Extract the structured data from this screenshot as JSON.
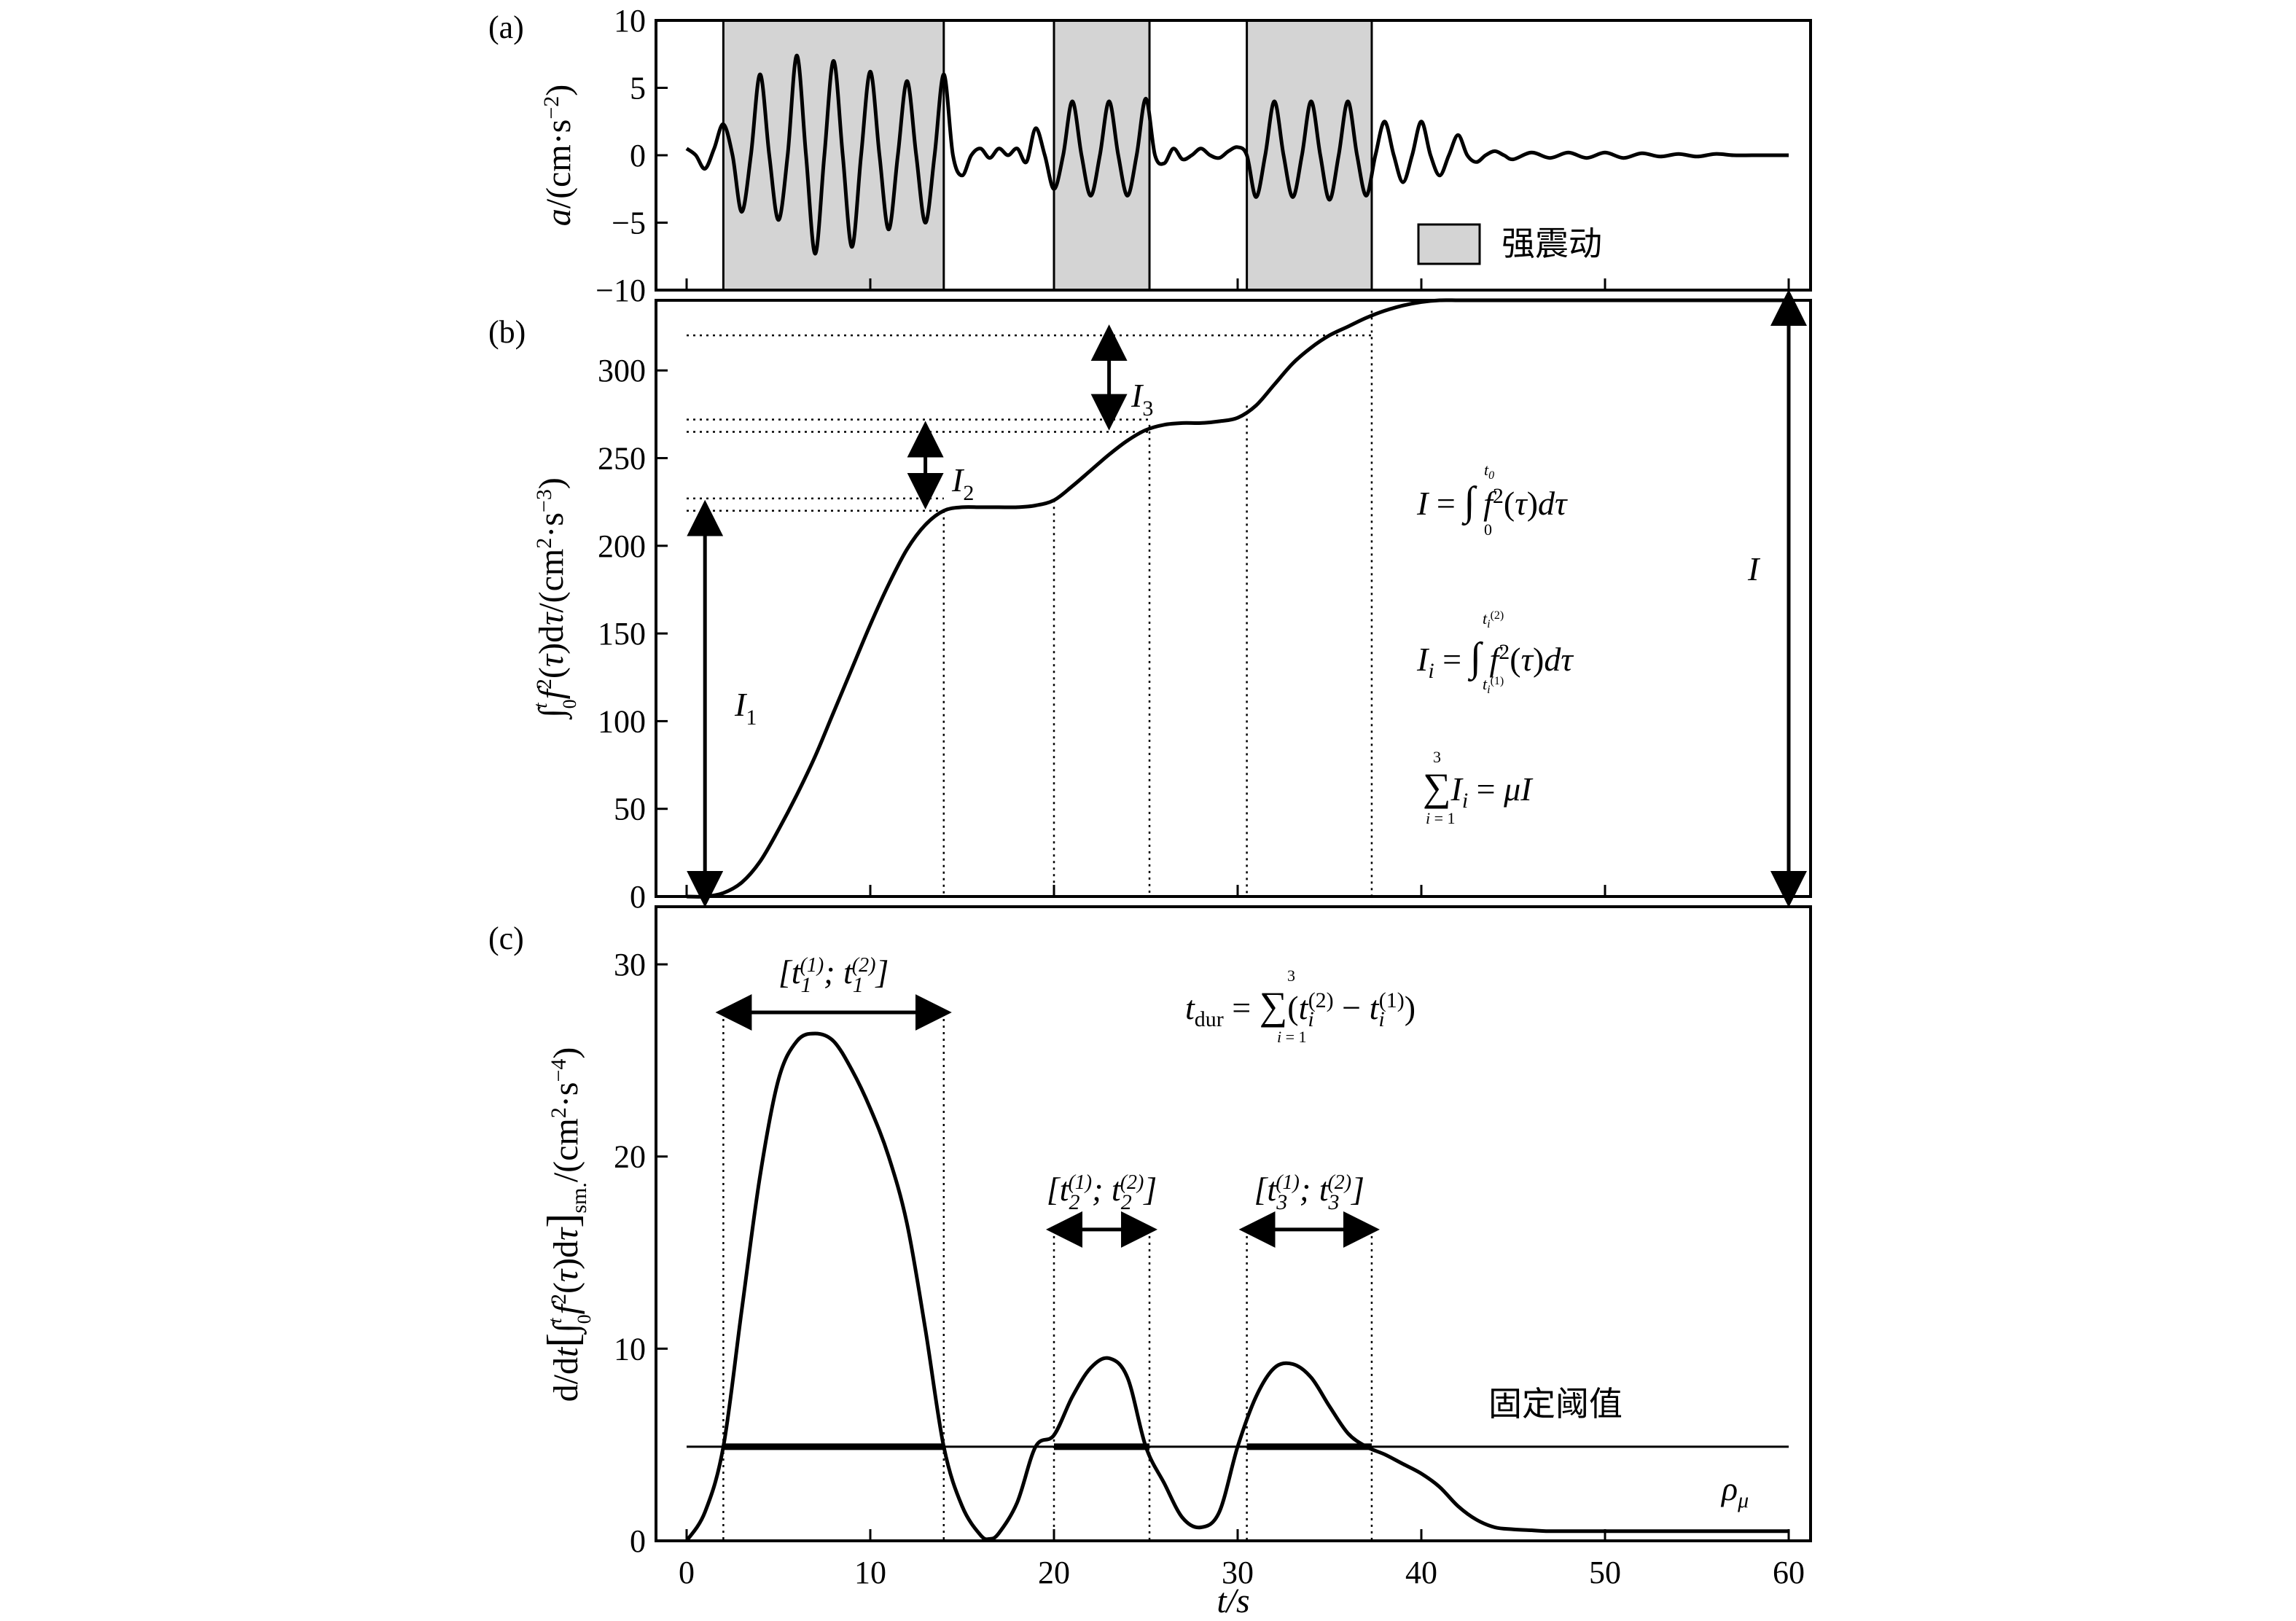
{
  "chart_data": [
    {
      "id": "a",
      "type": "line",
      "panel_label": "(a)",
      "ylabel": "a/(cm·s⁻²)",
      "xlim": [
        0,
        60
      ],
      "ylim": [
        -10,
        10
      ],
      "x_ticks": [
        0,
        10,
        20,
        30,
        40,
        50,
        60
      ],
      "y_ticks": [
        -10,
        -5,
        0,
        5,
        10
      ],
      "y_tick_labels": [
        "−10",
        "−5",
        "0",
        "5",
        "10"
      ],
      "shaded_intervals": [
        [
          2,
          14
        ],
        [
          20,
          25.2
        ],
        [
          30.5,
          37.3
        ]
      ],
      "legend": {
        "label": "强震动",
        "position": "bottom-right"
      },
      "series": [
        {
          "x": [
            0,
            0.5,
            1,
            1.5,
            2,
            2.5,
            3,
            3.5,
            4,
            4.5,
            5,
            5.5,
            6,
            6.5,
            7,
            7.5,
            8,
            8.5,
            9,
            9.5,
            10,
            10.5,
            11,
            11.5,
            12,
            12.5,
            13,
            13.5,
            14,
            14.5,
            15,
            15.5,
            16,
            16.5,
            17,
            17.5,
            18,
            18.5,
            19,
            19.5,
            20,
            20.5,
            21,
            21.5,
            22,
            22.5,
            23,
            23.5,
            24,
            24.5,
            25,
            25.5,
            26,
            26.5,
            27,
            27.5,
            28,
            28.5,
            29,
            29.5,
            30,
            30.5,
            31,
            31.5,
            32,
            32.5,
            33,
            33.5,
            34,
            34.5,
            35,
            35.5,
            36,
            36.5,
            37,
            37.5,
            38,
            38.5,
            39,
            39.5,
            40,
            40.5,
            41,
            41.5,
            42,
            42.5,
            43,
            43.5,
            44,
            44.5,
            45,
            46,
            47,
            48,
            49,
            50,
            51,
            52,
            53,
            54,
            55,
            56,
            57,
            58,
            59,
            60
          ],
          "y": [
            0.5,
            0,
            -1,
            0.5,
            2.3,
            0,
            -4.2,
            0,
            6,
            0,
            -4.8,
            0,
            7.4,
            0,
            -7.3,
            0,
            7,
            0,
            -6.8,
            0,
            6.2,
            0,
            -5.5,
            0,
            5.5,
            0,
            -5,
            0,
            6,
            0,
            -1.5,
            0,
            0.5,
            -0.2,
            0.5,
            0,
            0.5,
            -0.5,
            2,
            0,
            -2.5,
            0,
            4,
            0,
            -3,
            0,
            4,
            0,
            -3,
            0,
            4.2,
            0,
            -0.6,
            0.5,
            -0.3,
            0,
            0.5,
            0,
            -0.2,
            0.3,
            0.6,
            0,
            -3.1,
            0,
            4,
            0,
            -3.1,
            0,
            4,
            0,
            -3.3,
            0,
            4,
            0,
            -3,
            0,
            2.5,
            0,
            -2,
            0,
            2.5,
            0,
            -1.5,
            0,
            1.5,
            0,
            -0.5,
            0,
            0.3,
            0,
            -0.3,
            0.2,
            -0.2,
            0.2,
            -0.2,
            0.2,
            -0.2,
            0.15,
            -0.1,
            0.1,
            -0.1,
            0.1,
            0,
            0,
            0,
            0
          ]
        }
      ]
    },
    {
      "id": "b",
      "type": "line",
      "panel_label": "(b)",
      "ylabel": "∫₀ᵗ f²(τ)dτ/(cm²·s⁻³)",
      "xlim": [
        0,
        60
      ],
      "ylim": [
        0,
        340
      ],
      "x_ticks": [
        0,
        10,
        20,
        30,
        40,
        50,
        60
      ],
      "y_ticks": [
        0,
        50,
        100,
        150,
        200,
        250,
        300
      ],
      "series": [
        {
          "x": [
            0,
            1,
            2,
            3,
            4,
            5,
            6,
            7,
            8,
            9,
            10,
            11,
            12,
            13,
            14,
            15,
            16,
            17,
            18,
            19,
            20,
            21,
            22,
            23,
            24,
            25,
            26,
            27,
            28,
            29,
            30,
            31,
            32,
            33,
            34,
            35,
            36,
            37,
            38,
            39,
            40,
            41,
            42,
            43,
            44,
            45,
            47,
            50,
            55,
            60
          ],
          "y": [
            0,
            0,
            2,
            8,
            20,
            38,
            58,
            80,
            105,
            130,
            155,
            178,
            198,
            212,
            220,
            222,
            222,
            222,
            222,
            223,
            226,
            234,
            243,
            252,
            260,
            266,
            269,
            270,
            270,
            271,
            273,
            280,
            292,
            304,
            313,
            320,
            325,
            330,
            334,
            337,
            339,
            340,
            340,
            340,
            340,
            340,
            340,
            340,
            340,
            340
          ]
        }
      ],
      "reference_levels": [
        220,
        227,
        265,
        272,
        320
      ],
      "reference_times": [
        14,
        20,
        25.2,
        30.5,
        37.3
      ],
      "annotations": {
        "I1": "I",
        "I1_sub": "1",
        "I2": "I",
        "I2_sub": "2",
        "I3": "I",
        "I3_sub": "3",
        "I_total": "I",
        "formula1": "I = ∫₀^t₀ f²(τ)dτ",
        "formula2": "Iᵢ = ∫_{tᵢ⁽¹⁾}^{tᵢ⁽²⁾} f²(τ)dτ",
        "formula3": "∑ᵢ₌₁³ Iᵢ = μI"
      }
    },
    {
      "id": "c",
      "type": "line",
      "panel_label": "(c)",
      "xlabel": "t/s",
      "ylabel": "d/dt[∫₀ᵗ f²(τ)dτ]sm./(cm²·s⁻⁴)",
      "xlim": [
        0,
        60
      ],
      "ylim": [
        0,
        33
      ],
      "x_ticks": [
        0,
        10,
        20,
        30,
        40,
        50,
        60
      ],
      "y_ticks": [
        0,
        10,
        20,
        30
      ],
      "series": [
        {
          "x": [
            0,
            1,
            2,
            3,
            4,
            5,
            6,
            7,
            8,
            9,
            10,
            11,
            12,
            13,
            14,
            15,
            16,
            16.5,
            17,
            18,
            19,
            20,
            21,
            22,
            23,
            24,
            25,
            26,
            27,
            28,
            29,
            30,
            31,
            32,
            33,
            34,
            35,
            36,
            37,
            38,
            39,
            40,
            41,
            42,
            43,
            44,
            45,
            46,
            47,
            50,
            55,
            60
          ],
          "y": [
            0,
            1.5,
            4.9,
            12,
            19,
            24,
            26,
            26.4,
            26,
            24.5,
            22.5,
            20,
            16.5,
            11,
            4.9,
            1.8,
            0.3,
            0.1,
            0.4,
            2,
            4.9,
            5.5,
            7.5,
            9,
            9.5,
            8.5,
            4.9,
            3,
            1.2,
            0.7,
            1.5,
            4.9,
            7.5,
            9,
            9.2,
            8.5,
            7,
            5.6,
            4.9,
            4.5,
            4,
            3.5,
            2.8,
            1.8,
            1.1,
            0.7,
            0.6,
            0.55,
            0.5,
            0.5,
            0.5,
            0.5
          ]
        }
      ],
      "threshold": 4.9,
      "threshold_label": "固定阈值",
      "intervals": [
        {
          "start": 2,
          "end": 14,
          "label_t": "t",
          "label_sub1": "1",
          "label_sub2": "1"
        },
        {
          "start": 20,
          "end": 25.2,
          "label_t": "t",
          "label_sub1": "2",
          "label_sub2": "2"
        },
        {
          "start": 30.5,
          "end": 37.3,
          "label_t": "t",
          "label_sub1": "3",
          "label_sub2": "3"
        }
      ],
      "interval_sup1": "(1)",
      "interval_sup2": "(2)",
      "rho_label": "ρ",
      "rho_sub": "μ",
      "formula": "t_dur = ∑ᵢ₌₁³ (tᵢ⁽²⁾ − tᵢ⁽¹⁾)",
      "formula_lhs": "t",
      "formula_lhs_sub": "dur"
    }
  ]
}
